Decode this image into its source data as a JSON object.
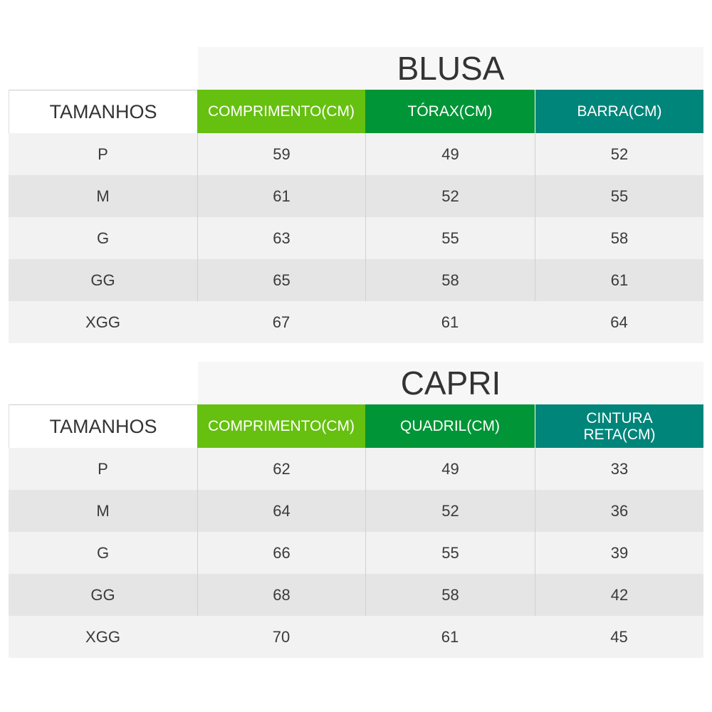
{
  "colors": {
    "col1": "#66c010",
    "col2": "#009536",
    "col3": "#00857a"
  },
  "tables": [
    {
      "title": "BLUSA",
      "size_header": "TAMANHOS",
      "columns": [
        "COMPRIMENTO(CM)",
        "TÓRAX(CM)",
        "BARRA(CM)"
      ],
      "rows": [
        [
          "P",
          "59",
          "49",
          "52"
        ],
        [
          "M",
          "61",
          "52",
          "55"
        ],
        [
          "G",
          "63",
          "55",
          "58"
        ],
        [
          "GG",
          "65",
          "58",
          "61"
        ],
        [
          "XGG",
          "67",
          "61",
          "64"
        ]
      ]
    },
    {
      "title": "CAPRI",
      "size_header": "TAMANHOS",
      "columns": [
        "COMPRIMENTO(CM)",
        "QUADRIL(CM)",
        "CINTURA RETA(CM)"
      ],
      "rows": [
        [
          "P",
          "62",
          "49",
          "33"
        ],
        [
          "M",
          "64",
          "52",
          "36"
        ],
        [
          "G",
          "66",
          "55",
          "39"
        ],
        [
          "GG",
          "68",
          "58",
          "42"
        ],
        [
          "XGG",
          "70",
          "61",
          "45"
        ]
      ]
    }
  ]
}
